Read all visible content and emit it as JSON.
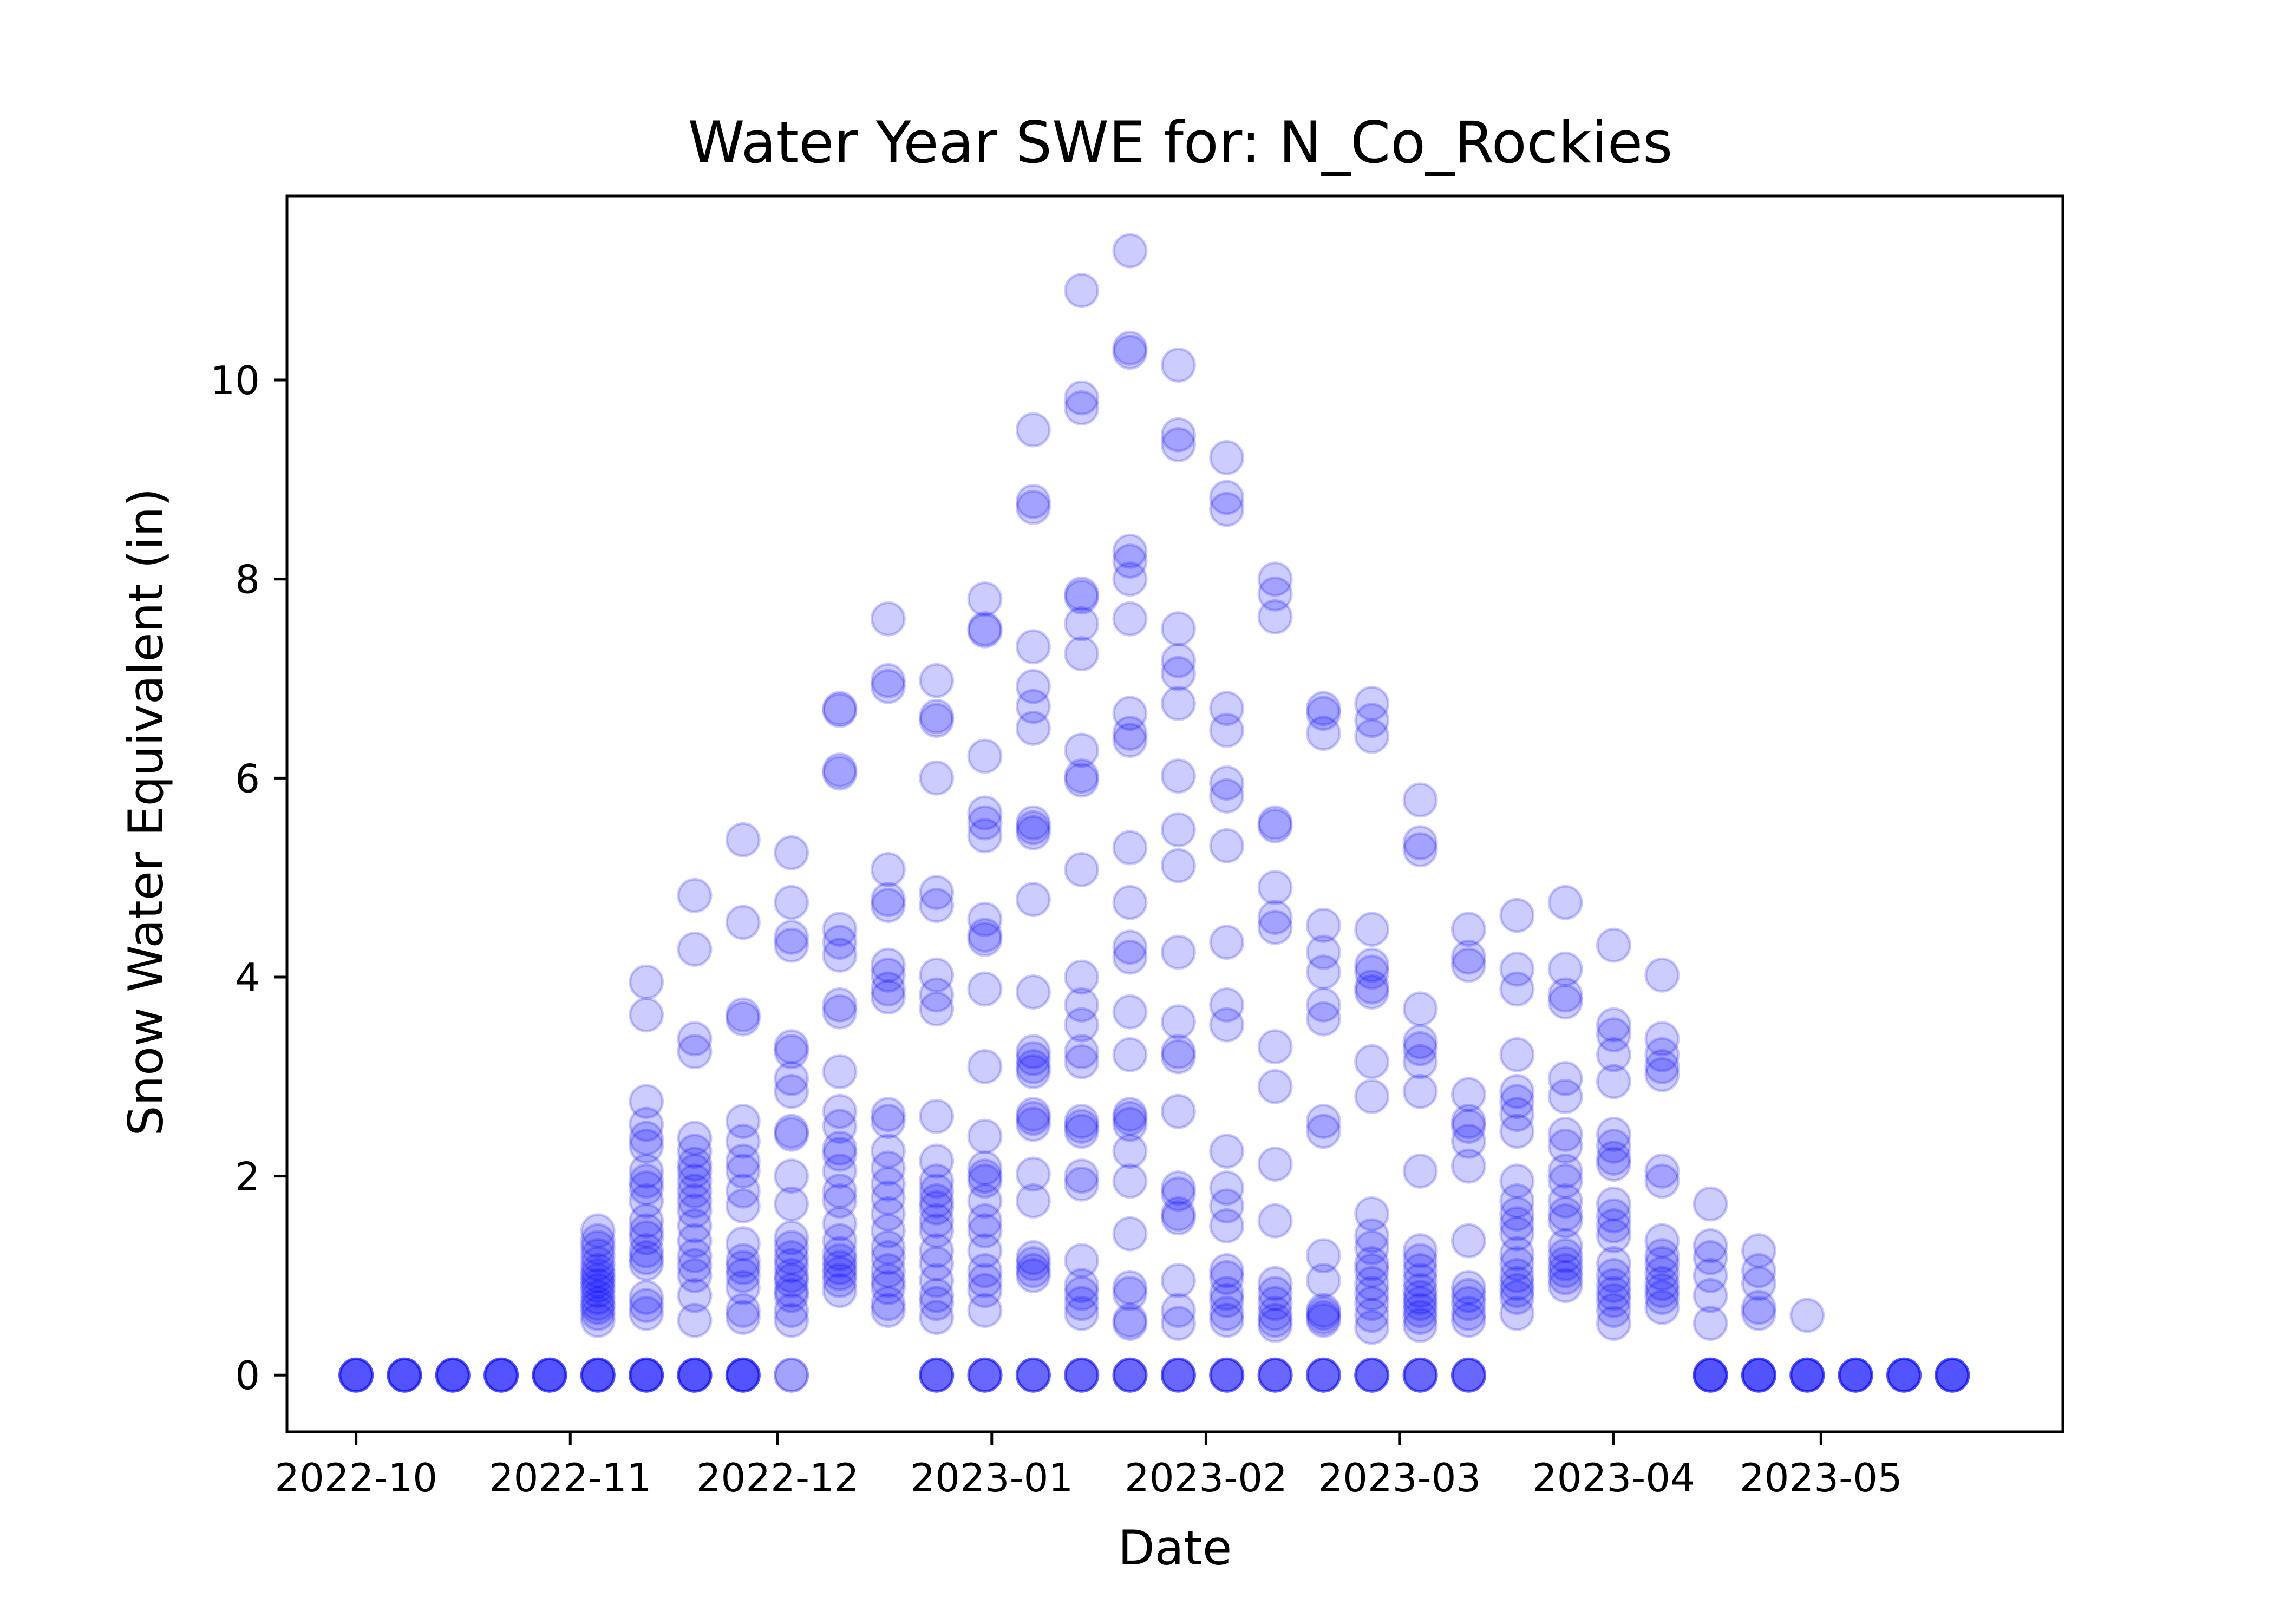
{
  "chart_data": {
    "type": "scatter",
    "title": "Water Year SWE for: N_Co_Rockies",
    "xlabel": "Date",
    "ylabel": "Snow Water Equivalent (in)",
    "x_type": "date",
    "xlim": [
      "2022-09-21",
      "2023-06-05"
    ],
    "ylim": [
      -0.57,
      11.85
    ],
    "xticks": [
      "2022-10-01",
      "2022-11-01",
      "2022-12-01",
      "2023-01-01",
      "2023-02-01",
      "2023-03-01",
      "2023-04-01",
      "2023-05-01"
    ],
    "xtick_labels": [
      "2022-10",
      "2022-11",
      "2022-12",
      "2023-01",
      "2023-02",
      "2023-03",
      "2023-04",
      "2023-05"
    ],
    "yticks": [
      0,
      2,
      4,
      6,
      8,
      10
    ],
    "ytick_labels": [
      "0",
      "2",
      "4",
      "6",
      "8",
      "10"
    ],
    "grid": false,
    "legend": "none",
    "marker_color": "#0000ff",
    "marker_alpha": 0.2,
    "series": [
      {
        "x": "2022-10-01",
        "values": [
          0,
          0,
          0,
          0,
          0
        ]
      },
      {
        "x": "2022-10-08",
        "values": [
          0,
          0,
          0,
          0,
          0
        ]
      },
      {
        "x": "2022-10-15",
        "values": [
          0,
          0,
          0,
          0,
          0
        ]
      },
      {
        "x": "2022-10-22",
        "values": [
          0,
          0,
          0,
          0,
          0
        ]
      },
      {
        "x": "2022-10-29",
        "values": [
          0,
          0,
          0,
          0,
          0
        ]
      },
      {
        "x": "2022-11-05",
        "values": [
          0,
          0,
          0,
          0,
          0,
          0.55,
          0.62,
          0.68,
          0.72,
          0.78,
          0.85,
          0.9,
          0.95,
          1.0,
          1.05,
          1.12,
          1.2,
          1.28,
          1.35,
          1.45
        ]
      },
      {
        "x": "2022-11-12",
        "values": [
          0,
          0,
          0,
          0,
          0,
          0.62,
          0.7,
          0.78,
          1.12,
          1.18,
          1.25,
          1.38,
          1.45,
          1.55,
          1.75,
          1.88,
          1.95,
          2.05,
          2.3,
          2.38,
          2.52,
          2.75,
          3.62,
          3.95
        ]
      },
      {
        "x": "2022-11-19",
        "values": [
          0,
          0,
          0,
          0,
          0,
          0.55,
          0.8,
          1.0,
          1.1,
          1.2,
          1.35,
          1.5,
          1.65,
          1.75,
          1.85,
          1.95,
          2.05,
          2.12,
          2.25,
          2.38,
          3.25,
          3.38,
          4.28,
          4.82
        ]
      },
      {
        "x": "2022-11-26",
        "values": [
          0,
          0,
          0,
          0,
          0,
          0.58,
          0.65,
          0.88,
          1.0,
          1.08,
          1.15,
          1.32,
          1.7,
          1.85,
          2.05,
          2.15,
          2.35,
          2.55,
          3.58,
          3.62,
          4.55,
          5.38
        ]
      },
      {
        "x": "2022-12-03",
        "values": [
          0,
          0,
          0.55,
          0.65,
          0.8,
          0.85,
          0.95,
          1.0,
          1.1,
          1.18,
          1.28,
          1.38,
          1.72,
          2.0,
          2.42,
          2.45,
          2.85,
          2.98,
          3.25,
          3.3,
          4.32,
          4.4,
          4.75,
          5.25
        ]
      },
      {
        "x": "2022-12-10",
        "values": [
          0.85,
          0.95,
          1.02,
          1.08,
          1.15,
          1.22,
          1.35,
          1.52,
          1.75,
          1.85,
          2.05,
          2.22,
          2.28,
          2.5,
          2.65,
          3.05,
          3.65,
          3.72,
          4.22,
          4.35,
          4.48,
          6.05,
          6.08,
          6.68,
          6.7
        ]
      },
      {
        "x": "2022-12-17",
        "values": [
          0.65,
          0.72,
          0.88,
          0.95,
          1.05,
          1.18,
          1.28,
          1.45,
          1.62,
          1.78,
          1.92,
          2.08,
          2.25,
          2.55,
          2.62,
          3.8,
          3.88,
          4.02,
          4.12,
          4.72,
          4.78,
          5.08,
          6.92,
          6.98,
          7.6
        ]
      },
      {
        "x": "2022-12-24",
        "values": [
          0,
          0,
          0,
          0,
          0.58,
          0.72,
          0.8,
          0.95,
          1.12,
          1.25,
          1.45,
          1.55,
          1.68,
          1.75,
          1.85,
          1.95,
          2.15,
          2.6,
          3.68,
          3.82,
          4.02,
          4.72,
          4.85,
          6.0,
          6.58,
          6.62,
          6.98
        ]
      },
      {
        "x": "2022-12-31",
        "values": [
          0,
          0,
          0,
          0,
          0.65,
          0.85,
          0.95,
          1.05,
          1.25,
          1.45,
          1.55,
          1.75,
          1.95,
          2.0,
          2.08,
          2.4,
          3.1,
          3.88,
          4.38,
          4.42,
          4.58,
          5.42,
          5.55,
          5.65,
          6.22,
          7.48,
          7.5,
          7.8
        ]
      },
      {
        "x": "2023-01-07",
        "values": [
          0,
          0,
          0,
          0,
          1.0,
          1.05,
          1.12,
          1.18,
          1.75,
          2.02,
          2.52,
          2.58,
          2.62,
          3.05,
          3.1,
          3.18,
          3.25,
          3.85,
          4.78,
          5.45,
          5.5,
          5.55,
          6.5,
          6.72,
          6.92,
          7.32,
          8.72,
          8.78,
          9.5
        ]
      },
      {
        "x": "2023-01-14",
        "values": [
          0,
          0,
          0,
          0,
          0.62,
          0.72,
          0.82,
          0.9,
          1.15,
          1.92,
          2.0,
          2.45,
          2.5,
          2.55,
          3.15,
          3.25,
          3.52,
          3.72,
          4.0,
          5.08,
          5.98,
          6.02,
          6.28,
          7.25,
          7.55,
          7.82,
          7.85,
          9.72,
          9.82,
          10.9
        ]
      },
      {
        "x": "2023-01-21",
        "values": [
          0,
          0,
          0,
          0,
          0.52,
          0.55,
          0.82,
          0.88,
          1.42,
          1.95,
          2.25,
          2.52,
          2.58,
          2.62,
          3.22,
          3.65,
          4.2,
          4.3,
          4.75,
          5.3,
          6.38,
          6.45,
          6.65,
          7.6,
          8.0,
          8.18,
          8.28,
          10.28,
          10.32,
          11.3
        ]
      },
      {
        "x": "2023-01-28",
        "values": [
          0,
          0,
          0,
          0,
          0.52,
          0.65,
          0.95,
          1.58,
          1.62,
          1.82,
          1.88,
          2.65,
          3.2,
          3.25,
          3.55,
          4.25,
          5.12,
          5.48,
          6.02,
          6.75,
          7.05,
          7.18,
          7.5,
          9.35,
          9.45,
          10.15
        ]
      },
      {
        "x": "2023-02-04",
        "values": [
          0,
          0,
          0,
          0,
          0.55,
          0.62,
          0.75,
          0.82,
          0.98,
          1.05,
          1.5,
          1.7,
          1.88,
          2.25,
          3.52,
          3.72,
          4.35,
          5.32,
          5.82,
          5.95,
          6.48,
          6.7,
          8.7,
          8.82,
          9.22
        ]
      },
      {
        "x": "2023-02-11",
        "values": [
          0,
          0,
          0,
          0,
          0.5,
          0.55,
          0.62,
          0.72,
          0.82,
          0.92,
          1.55,
          2.12,
          2.9,
          3.3,
          4.5,
          4.6,
          4.9,
          5.52,
          5.55,
          7.62,
          7.85,
          8.0
        ]
      },
      {
        "x": "2023-02-18",
        "values": [
          0,
          0,
          0,
          0,
          0.55,
          0.58,
          0.62,
          0.65,
          0.95,
          1.2,
          2.45,
          2.55,
          3.58,
          3.72,
          4.05,
          4.25,
          4.52,
          6.45,
          6.65,
          6.7
        ]
      },
      {
        "x": "2023-02-25",
        "values": [
          0,
          0,
          0,
          0,
          0.48,
          0.6,
          0.72,
          0.82,
          0.92,
          1.05,
          1.12,
          1.28,
          1.4,
          1.62,
          2.8,
          3.15,
          3.85,
          3.9,
          4.05,
          4.12,
          4.48,
          6.42,
          6.58,
          6.75
        ]
      },
      {
        "x": "2023-03-04",
        "values": [
          0,
          0,
          0,
          0,
          0.5,
          0.58,
          0.65,
          0.72,
          0.78,
          0.85,
          0.95,
          1.05,
          1.15,
          1.25,
          2.05,
          2.85,
          3.15,
          3.28,
          3.35,
          3.68,
          5.28,
          5.35,
          5.78
        ]
      },
      {
        "x": "2023-03-11",
        "values": [
          0,
          0,
          0,
          0,
          0.55,
          0.62,
          0.72,
          0.8,
          0.88,
          1.35,
          2.1,
          2.35,
          2.5,
          2.55,
          2.82,
          4.12,
          4.2,
          4.48
        ]
      },
      {
        "x": "2023-03-18",
        "values": [
          0.62,
          0.78,
          0.85,
          0.92,
          1.0,
          1.12,
          1.22,
          1.42,
          1.52,
          1.62,
          1.75,
          1.95,
          2.45,
          2.62,
          2.75,
          2.85,
          3.22,
          3.88,
          4.08,
          4.62
        ]
      },
      {
        "x": "2023-03-25",
        "values": [
          0.9,
          0.98,
          1.05,
          1.12,
          1.2,
          1.3,
          1.55,
          1.62,
          1.75,
          1.95,
          2.05,
          2.3,
          2.42,
          2.8,
          2.98,
          3.75,
          3.82,
          4.08,
          4.75
        ]
      },
      {
        "x": "2023-04-01",
        "values": [
          0.52,
          0.65,
          0.75,
          0.82,
          0.9,
          1.0,
          1.12,
          1.4,
          1.5,
          1.6,
          1.72,
          2.12,
          2.18,
          2.3,
          2.42,
          2.95,
          3.22,
          3.42,
          3.52,
          4.32
        ]
      },
      {
        "x": "2023-04-08",
        "values": [
          0.68,
          0.78,
          0.85,
          0.92,
          1.02,
          1.12,
          1.2,
          1.35,
          1.95,
          2.05,
          3.02,
          3.1,
          3.22,
          3.38,
          4.02
        ]
      },
      {
        "x": "2023-04-15",
        "values": [
          0,
          0,
          0,
          0,
          0,
          0.52,
          0.8,
          1.0,
          1.18,
          1.3,
          1.72
        ]
      },
      {
        "x": "2023-04-22",
        "values": [
          0,
          0,
          0,
          0,
          0,
          0.62,
          0.68,
          0.92,
          1.05,
          1.25
        ]
      },
      {
        "x": "2023-04-29",
        "values": [
          0,
          0,
          0,
          0,
          0,
          0.6
        ]
      },
      {
        "x": "2023-05-06",
        "values": [
          0,
          0,
          0,
          0,
          0
        ]
      },
      {
        "x": "2023-05-13",
        "values": [
          0,
          0,
          0,
          0,
          0
        ]
      },
      {
        "x": "2023-05-20",
        "values": [
          0,
          0,
          0,
          0,
          0
        ]
      }
    ]
  }
}
